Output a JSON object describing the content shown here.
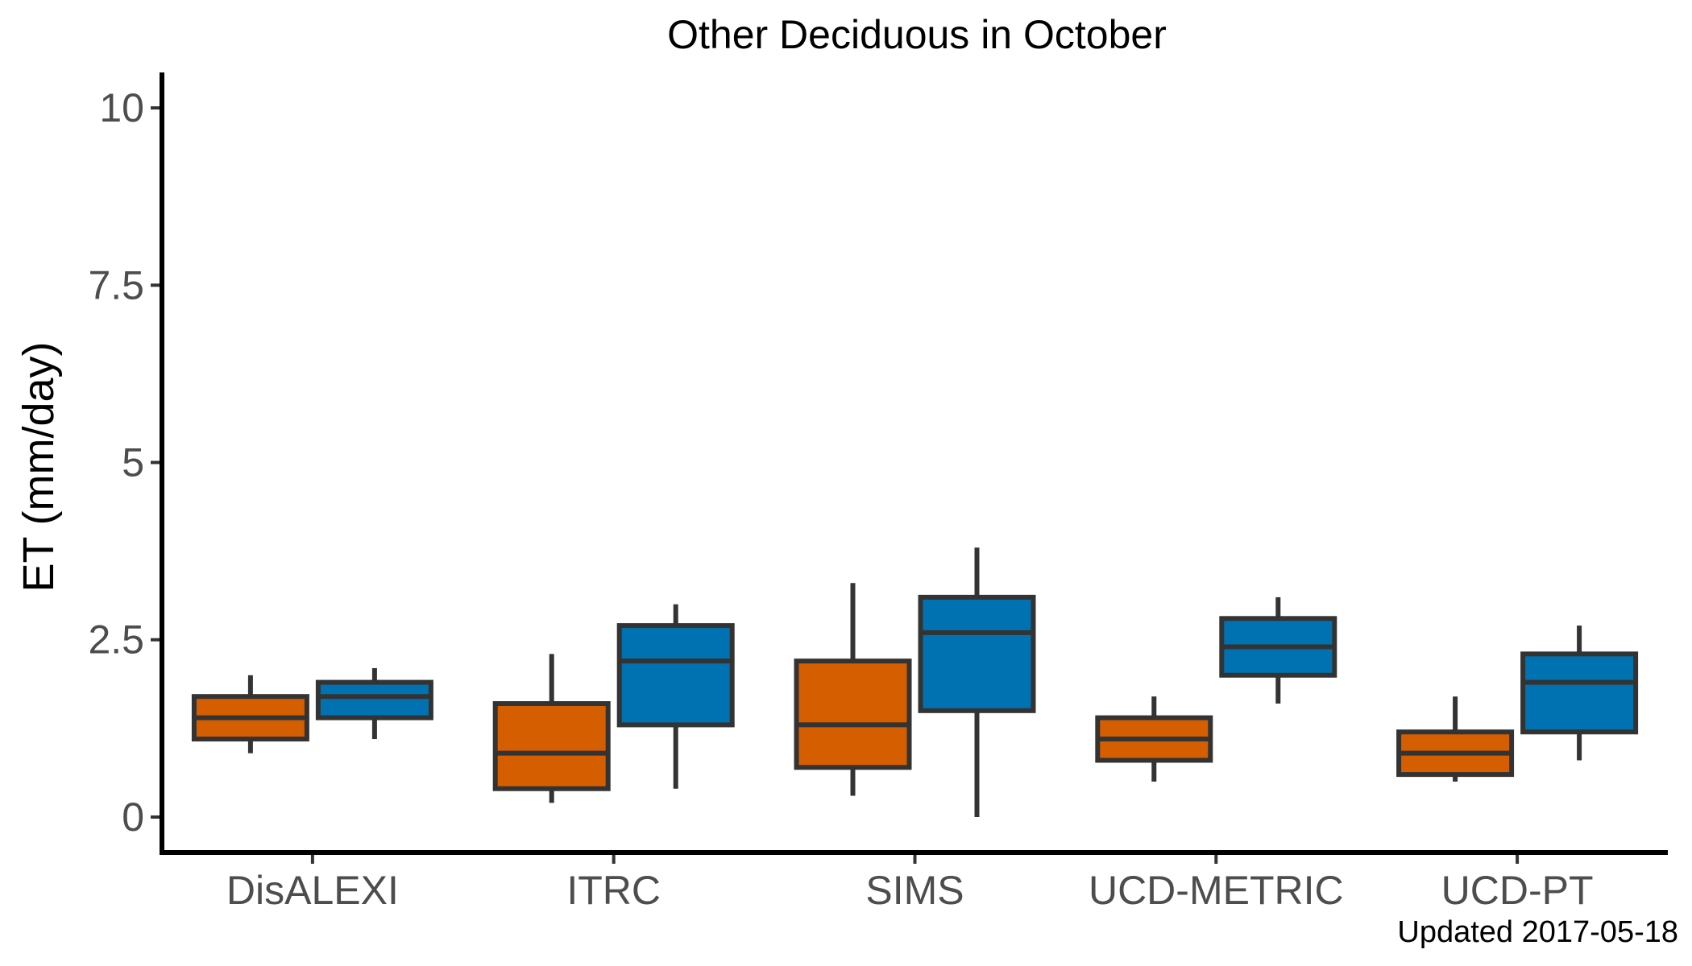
{
  "chart_data": {
    "type": "box",
    "title": "Other Deciduous in October",
    "xlabel": "",
    "ylabel": "ET (mm/day)",
    "ylim": [
      -0.5,
      10.5
    ],
    "yticks": [
      0,
      2.5,
      5,
      7.5,
      10
    ],
    "ytick_labels": [
      "0",
      "2.5",
      "5",
      "7.5",
      "10"
    ],
    "categories": [
      "DisALEXI",
      "ITRC",
      "SIMS",
      "UCD-METRIC",
      "UCD-PT"
    ],
    "grid": false,
    "legend": "none",
    "series": [
      {
        "color": "#D55E00",
        "boxes": [
          {
            "min": 0.9,
            "q1": 1.1,
            "median": 1.4,
            "q3": 1.7,
            "max": 2.0
          },
          {
            "min": 0.2,
            "q1": 0.4,
            "median": 0.9,
            "q3": 1.6,
            "max": 2.3
          },
          {
            "min": 0.3,
            "q1": 0.7,
            "median": 1.3,
            "q3": 2.2,
            "max": 3.3
          },
          {
            "min": 0.5,
            "q1": 0.8,
            "median": 1.1,
            "q3": 1.4,
            "max": 1.7
          },
          {
            "min": 0.5,
            "q1": 0.6,
            "median": 0.9,
            "q3": 1.2,
            "max": 1.7
          }
        ]
      },
      {
        "color": "#0072B2",
        "boxes": [
          {
            "min": 1.1,
            "q1": 1.4,
            "median": 1.7,
            "q3": 1.9,
            "max": 2.1
          },
          {
            "min": 0.4,
            "q1": 1.3,
            "median": 2.2,
            "q3": 2.7,
            "max": 3.0
          },
          {
            "min": 0.0,
            "q1": 1.5,
            "median": 2.6,
            "q3": 3.1,
            "max": 3.8
          },
          {
            "min": 1.6,
            "q1": 2.0,
            "median": 2.4,
            "q3": 2.8,
            "max": 3.1
          },
          {
            "min": 0.8,
            "q1": 1.2,
            "median": 1.9,
            "q3": 2.3,
            "max": 2.7
          }
        ]
      }
    ],
    "caption": "Updated  2017-05-18"
  }
}
